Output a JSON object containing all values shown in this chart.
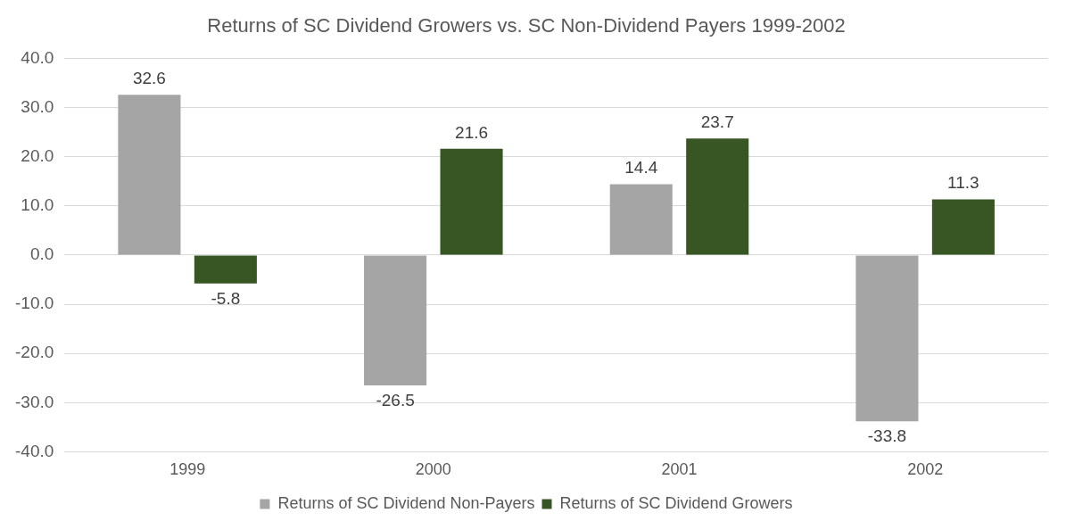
{
  "chart_data": {
    "type": "bar",
    "title": "Returns of SC Dividend Growers vs. SC Non-Dividend Payers 1999-2002",
    "categories": [
      "1999",
      "2000",
      "2001",
      "2002"
    ],
    "series": [
      {
        "name": "Returns of SC Dividend Non-Payers",
        "color": "#a5a5a5",
        "values": [
          32.6,
          -26.5,
          14.4,
          -33.8
        ]
      },
      {
        "name": "Returns of SC Dividend Growers",
        "color": "#375623",
        "values": [
          -5.8,
          21.6,
          23.7,
          11.3
        ]
      }
    ],
    "ylim": [
      -40,
      40
    ],
    "yticks": [
      {
        "value": -40,
        "label": "-40.0"
      },
      {
        "value": -30,
        "label": "-30.0"
      },
      {
        "value": -20,
        "label": "-20.0"
      },
      {
        "value": -10,
        "label": "-10.0"
      },
      {
        "value": 0,
        "label": "0.0"
      },
      {
        "value": 10,
        "label": "10.0"
      },
      {
        "value": 20,
        "label": "20.0"
      },
      {
        "value": 30,
        "label": "30.0"
      },
      {
        "value": 40,
        "label": "40.0"
      }
    ],
    "grid": "y",
    "legend": "bottom",
    "data_labels": true
  }
}
